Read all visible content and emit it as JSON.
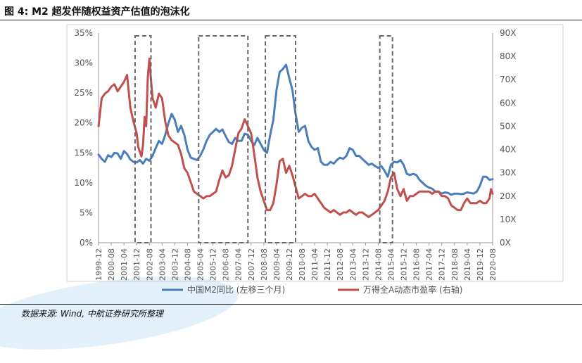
{
  "figure": {
    "title": "图 4: M2 超发伴随权益资产估值的泡沫化",
    "source": "数据来源: Wind, 中航证券研究所整理"
  },
  "colors": {
    "m2": "#4a7ebb",
    "pe": "#c0504d",
    "box": "#666666"
  },
  "chart_data": {
    "type": "line",
    "title": "",
    "left_axis": {
      "label": "",
      "ylim": [
        0,
        35
      ],
      "ticks": [
        "0%",
        "5%",
        "10%",
        "15%",
        "20%",
        "25%",
        "30%",
        "35%"
      ]
    },
    "right_axis": {
      "label": "",
      "ylim": [
        0,
        90
      ],
      "ticks": [
        "0X",
        "10X",
        "20X",
        "30X",
        "40X",
        "50X",
        "60X",
        "70X",
        "80X",
        "90X"
      ]
    },
    "x_ticks": [
      "1999-12",
      "2000-08",
      "2001-04",
      "2001-12",
      "2002-08",
      "2003-04",
      "2003-12",
      "2004-08",
      "2005-04",
      "2005-12",
      "2006-08",
      "2007-04",
      "2007-12",
      "2008-08",
      "2009-04",
      "2009-12",
      "2010-08",
      "2011-04",
      "2011-12",
      "2012-08",
      "2013-04",
      "2013-12",
      "2014-08",
      "2015-04",
      "2015-12",
      "2016-08",
      "2017-04",
      "2017-12",
      "2018-08",
      "2019-04",
      "2019-12",
      "2020-08"
    ],
    "series": [
      {
        "name": "中国M2同比 (左移三个月)",
        "axis": "left",
        "points": [
          [
            "1999-12",
            14.7
          ],
          [
            "2000-02",
            14.0
          ],
          [
            "2000-04",
            13.5
          ],
          [
            "2000-06",
            14.6
          ],
          [
            "2000-08",
            14.3
          ],
          [
            "2000-10",
            15.0
          ],
          [
            "2000-12",
            14.9
          ],
          [
            "2001-02",
            14.0
          ],
          [
            "2001-04",
            15.3
          ],
          [
            "2001-06",
            14.8
          ],
          [
            "2001-08",
            13.9
          ],
          [
            "2001-10",
            13.5
          ],
          [
            "2001-12",
            13.4
          ],
          [
            "2002-02",
            13.8
          ],
          [
            "2002-04",
            13.2
          ],
          [
            "2002-06",
            14.0
          ],
          [
            "2002-08",
            13.7
          ],
          [
            "2002-10",
            14.5
          ],
          [
            "2002-12",
            15.8
          ],
          [
            "2003-02",
            17.0
          ],
          [
            "2003-04",
            16.5
          ],
          [
            "2003-06",
            18.0
          ],
          [
            "2003-08",
            20.0
          ],
          [
            "2003-10",
            21.5
          ],
          [
            "2003-12",
            20.5
          ],
          [
            "2004-02",
            18.5
          ],
          [
            "2004-04",
            19.5
          ],
          [
            "2004-06",
            18.0
          ],
          [
            "2004-08",
            15.5
          ],
          [
            "2004-10",
            14.2
          ],
          [
            "2004-12",
            14.0
          ],
          [
            "2005-02",
            13.8
          ],
          [
            "2005-04",
            14.5
          ],
          [
            "2005-06",
            15.6
          ],
          [
            "2005-08",
            17.0
          ],
          [
            "2005-10",
            18.0
          ],
          [
            "2005-12",
            18.5
          ],
          [
            "2006-02",
            19.0
          ],
          [
            "2006-04",
            18.5
          ],
          [
            "2006-06",
            18.9
          ],
          [
            "2006-08",
            17.8
          ],
          [
            "2006-10",
            16.8
          ],
          [
            "2006-12",
            16.5
          ],
          [
            "2007-02",
            17.5
          ],
          [
            "2007-04",
            17.0
          ],
          [
            "2007-06",
            17.0
          ],
          [
            "2007-08",
            18.2
          ],
          [
            "2007-10",
            18.0
          ],
          [
            "2007-12",
            17.0
          ],
          [
            "2008-02",
            16.3
          ],
          [
            "2008-04",
            17.5
          ],
          [
            "2008-06",
            16.5
          ],
          [
            "2008-08",
            15.5
          ],
          [
            "2008-10",
            15.0
          ],
          [
            "2008-12",
            18.0
          ],
          [
            "2009-02",
            20.5
          ],
          [
            "2009-04",
            25.5
          ],
          [
            "2009-06",
            28.5
          ],
          [
            "2009-08",
            29.0
          ],
          [
            "2009-10",
            29.7
          ],
          [
            "2009-12",
            27.5
          ],
          [
            "2010-02",
            25.5
          ],
          [
            "2010-04",
            21.5
          ],
          [
            "2010-06",
            18.5
          ],
          [
            "2010-08",
            19.2
          ],
          [
            "2010-10",
            19.5
          ],
          [
            "2010-12",
            17.0
          ],
          [
            "2011-02",
            16.0
          ],
          [
            "2011-04",
            15.5
          ],
          [
            "2011-06",
            15.8
          ],
          [
            "2011-08",
            13.5
          ],
          [
            "2011-10",
            13.0
          ],
          [
            "2011-12",
            13.0
          ],
          [
            "2012-02",
            13.5
          ],
          [
            "2012-04",
            13.2
          ],
          [
            "2012-06",
            13.8
          ],
          [
            "2012-08",
            14.2
          ],
          [
            "2012-10",
            14.0
          ],
          [
            "2012-12",
            14.5
          ],
          [
            "2013-02",
            15.8
          ],
          [
            "2013-04",
            15.5
          ],
          [
            "2013-06",
            14.5
          ],
          [
            "2013-08",
            14.5
          ],
          [
            "2013-10",
            14.0
          ],
          [
            "2013-12",
            13.5
          ],
          [
            "2014-02",
            13.0
          ],
          [
            "2014-04",
            13.2
          ],
          [
            "2014-06",
            12.8
          ],
          [
            "2014-08",
            12.5
          ],
          [
            "2014-10",
            12.8
          ],
          [
            "2014-12",
            12.0
          ],
          [
            "2015-02",
            11.0
          ],
          [
            "2015-04",
            13.0
          ],
          [
            "2015-06",
            13.5
          ],
          [
            "2015-08",
            13.4
          ],
          [
            "2015-10",
            13.8
          ],
          [
            "2015-12",
            13.0
          ],
          [
            "2016-02",
            11.5
          ],
          [
            "2016-04",
            11.3
          ],
          [
            "2016-06",
            11.5
          ],
          [
            "2016-08",
            11.3
          ],
          [
            "2016-10",
            10.5
          ],
          [
            "2016-12",
            10.0
          ],
          [
            "2017-02",
            9.5
          ],
          [
            "2017-04",
            9.2
          ],
          [
            "2017-06",
            9.0
          ],
          [
            "2017-08",
            8.5
          ],
          [
            "2017-10",
            8.5
          ],
          [
            "2017-12",
            8.2
          ],
          [
            "2018-02",
            8.4
          ],
          [
            "2018-04",
            8.3
          ],
          [
            "2018-06",
            8.0
          ],
          [
            "2018-08",
            8.2
          ],
          [
            "2018-10",
            8.2
          ],
          [
            "2018-12",
            8.1
          ],
          [
            "2019-02",
            8.2
          ],
          [
            "2019-04",
            8.4
          ],
          [
            "2019-06",
            8.3
          ],
          [
            "2019-08",
            8.2
          ],
          [
            "2019-10",
            8.5
          ],
          [
            "2019-12",
            9.5
          ],
          [
            "2020-02",
            11.0
          ],
          [
            "2020-04",
            11.0
          ],
          [
            "2020-06",
            10.5
          ],
          [
            "2020-08",
            10.6
          ]
        ]
      },
      {
        "name": "万得全A动态市盈率 (右轴)",
        "axis": "right",
        "points": [
          [
            "1999-12",
            50
          ],
          [
            "2000-02",
            62
          ],
          [
            "2000-04",
            64
          ],
          [
            "2000-06",
            65
          ],
          [
            "2000-08",
            67
          ],
          [
            "2000-10",
            68
          ],
          [
            "2000-12",
            65
          ],
          [
            "2001-02",
            67
          ],
          [
            "2001-04",
            69
          ],
          [
            "2001-06",
            72
          ],
          [
            "2001-08",
            58
          ],
          [
            "2001-10",
            52
          ],
          [
            "2001-12",
            47
          ],
          [
            "2002-01",
            41
          ],
          [
            "2002-03",
            37
          ],
          [
            "2002-04",
            42
          ],
          [
            "2002-05",
            54
          ],
          [
            "2002-06",
            50
          ],
          [
            "2002-07",
            71
          ],
          [
            "2002-08",
            79
          ],
          [
            "2002-09",
            70
          ],
          [
            "2002-10",
            62
          ],
          [
            "2002-12",
            58
          ],
          [
            "2003-02",
            64
          ],
          [
            "2003-04",
            62
          ],
          [
            "2003-06",
            52
          ],
          [
            "2003-08",
            46
          ],
          [
            "2003-10",
            44
          ],
          [
            "2003-12",
            43
          ],
          [
            "2004-02",
            42
          ],
          [
            "2004-04",
            38
          ],
          [
            "2004-06",
            32
          ],
          [
            "2004-08",
            30
          ],
          [
            "2004-10",
            26
          ],
          [
            "2004-12",
            22
          ],
          [
            "2005-02",
            21
          ],
          [
            "2005-04",
            20
          ],
          [
            "2005-06",
            19
          ],
          [
            "2005-08",
            20
          ],
          [
            "2005-10",
            20
          ],
          [
            "2005-12",
            21
          ],
          [
            "2006-02",
            22
          ],
          [
            "2006-04",
            27
          ],
          [
            "2006-06",
            31
          ],
          [
            "2006-08",
            28
          ],
          [
            "2006-10",
            29
          ],
          [
            "2006-12",
            33
          ],
          [
            "2007-02",
            40
          ],
          [
            "2007-04",
            47
          ],
          [
            "2007-06",
            49
          ],
          [
            "2007-08",
            53
          ],
          [
            "2007-10",
            50
          ],
          [
            "2007-12",
            47
          ],
          [
            "2008-02",
            38
          ],
          [
            "2008-04",
            28
          ],
          [
            "2008-06",
            22
          ],
          [
            "2008-08",
            18
          ],
          [
            "2008-10",
            14
          ],
          [
            "2008-12",
            14
          ],
          [
            "2009-02",
            17
          ],
          [
            "2009-04",
            25
          ],
          [
            "2009-06",
            35
          ],
          [
            "2009-08",
            36
          ],
          [
            "2009-10",
            30
          ],
          [
            "2009-12",
            33
          ],
          [
            "2010-02",
            29
          ],
          [
            "2010-04",
            24
          ],
          [
            "2010-06",
            19
          ],
          [
            "2010-08",
            20
          ],
          [
            "2010-10",
            21
          ],
          [
            "2010-12",
            20
          ],
          [
            "2011-02",
            20
          ],
          [
            "2011-04",
            21
          ],
          [
            "2011-06",
            19
          ],
          [
            "2011-08",
            17
          ],
          [
            "2011-10",
            15
          ],
          [
            "2011-12",
            14
          ],
          [
            "2012-02",
            13
          ],
          [
            "2012-04",
            14
          ],
          [
            "2012-06",
            13
          ],
          [
            "2012-08",
            12
          ],
          [
            "2012-10",
            13
          ],
          [
            "2012-12",
            13
          ],
          [
            "2013-02",
            14
          ],
          [
            "2013-04",
            13
          ],
          [
            "2013-06",
            12
          ],
          [
            "2013-08",
            13
          ],
          [
            "2013-10",
            13
          ],
          [
            "2013-12",
            12
          ],
          [
            "2014-02",
            11
          ],
          [
            "2014-04",
            12
          ],
          [
            "2014-06",
            13
          ],
          [
            "2014-08",
            14
          ],
          [
            "2014-10",
            16
          ],
          [
            "2014-12",
            18
          ],
          [
            "2015-02",
            22
          ],
          [
            "2015-04",
            28
          ],
          [
            "2015-06",
            30
          ],
          [
            "2015-08",
            23
          ],
          [
            "2015-10",
            20
          ],
          [
            "2015-12",
            23
          ],
          [
            "2016-02",
            18
          ],
          [
            "2016-04",
            20
          ],
          [
            "2016-06",
            20
          ],
          [
            "2016-08",
            21
          ],
          [
            "2016-10",
            22
          ],
          [
            "2016-12",
            22
          ],
          [
            "2017-02",
            22
          ],
          [
            "2017-04",
            22
          ],
          [
            "2017-06",
            21
          ],
          [
            "2017-08",
            22
          ],
          [
            "2017-10",
            22
          ],
          [
            "2017-12",
            20
          ],
          [
            "2018-02",
            20
          ],
          [
            "2018-04",
            19
          ],
          [
            "2018-06",
            16
          ],
          [
            "2018-08",
            15
          ],
          [
            "2018-10",
            14
          ],
          [
            "2018-12",
            14
          ],
          [
            "2019-02",
            17
          ],
          [
            "2019-04",
            19
          ],
          [
            "2019-06",
            17
          ],
          [
            "2019-08",
            17
          ],
          [
            "2019-10",
            17
          ],
          [
            "2019-12",
            18
          ],
          [
            "2020-02",
            17
          ],
          [
            "2020-04",
            17
          ],
          [
            "2020-06",
            19
          ],
          [
            "2020-07",
            23
          ],
          [
            "2020-08",
            21
          ]
        ]
      }
    ],
    "highlight_boxes": [
      {
        "from": "2001-11",
        "to": "2002-09"
      },
      {
        "from": "2005-03",
        "to": "2007-10"
      },
      {
        "from": "2008-09",
        "to": "2010-04"
      },
      {
        "from": "2014-09",
        "to": "2015-05"
      }
    ],
    "legend": {
      "placement": "bottom"
    }
  }
}
